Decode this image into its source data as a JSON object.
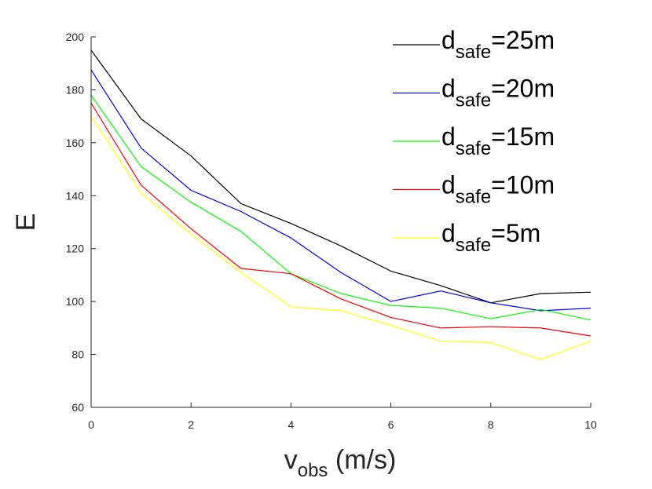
{
  "chart_data": {
    "type": "line",
    "title": "",
    "xlabel": {
      "main": "v",
      "subscript": "obs",
      "suffix": " (m/s)"
    },
    "ylabel": "E",
    "xlim": [
      0,
      10
    ],
    "ylim": [
      60,
      200
    ],
    "xticks": [
      0,
      2,
      4,
      6,
      8,
      10
    ],
    "yticks": [
      60,
      80,
      100,
      120,
      140,
      160,
      180,
      200
    ],
    "grid": false,
    "legend_position": "top-right",
    "x": [
      0,
      1,
      2,
      3,
      4,
      5,
      6,
      7,
      8,
      9,
      10
    ],
    "series": [
      {
        "name": "25m",
        "label_main": "d",
        "label_sub": "safe",
        "label_suffix": "=25m",
        "color": "#000000",
        "values": [
          195,
          169,
          155,
          137,
          129.5,
          121,
          111.5,
          106,
          99.5,
          103,
          103.5
        ]
      },
      {
        "name": "20m",
        "label_main": "d",
        "label_sub": "safe",
        "label_suffix": "=20m",
        "color": "#0000ff",
        "values": [
          187.5,
          158,
          142,
          134,
          124,
          111,
          100,
          104,
          99.5,
          96.5,
          97.5
        ]
      },
      {
        "name": "15m",
        "label_main": "d",
        "label_sub": "safe",
        "label_suffix": "=15m",
        "color": "#00ff00",
        "values": [
          178,
          151,
          137.5,
          126.5,
          110.5,
          103,
          98.5,
          97.5,
          93.5,
          97,
          93
        ]
      },
      {
        "name": "10m",
        "label_main": "d",
        "label_sub": "safe",
        "label_suffix": "=10m",
        "color": "#ff0000",
        "values": [
          175,
          144,
          127.5,
          112.5,
          110.5,
          101,
          94,
          90,
          90.5,
          90,
          87
        ]
      },
      {
        "name": "5m",
        "label_main": "d",
        "label_sub": "safe",
        "label_suffix": "=5m",
        "color": "#ffff00",
        "values": [
          170,
          141,
          125.5,
          111,
          98,
          96.5,
          91,
          85,
          84.5,
          78,
          85
        ]
      }
    ]
  }
}
